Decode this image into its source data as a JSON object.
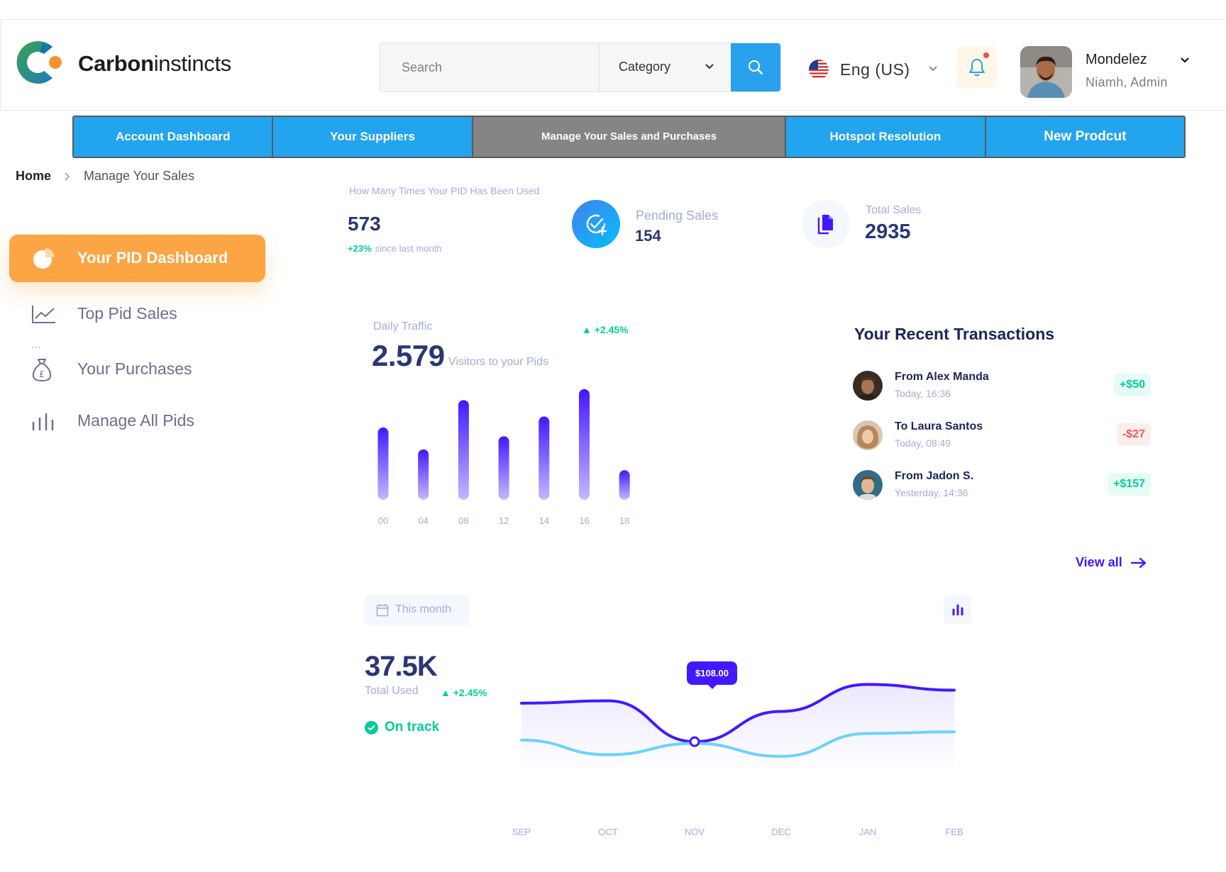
{
  "brand": {
    "name_bold": "Carbon",
    "name_light": "instincts"
  },
  "search": {
    "placeholder": "Search",
    "category": "Category"
  },
  "language": {
    "label": "Eng (US)"
  },
  "user": {
    "name": "Mondelez",
    "role": "Niamh, Admin"
  },
  "nav_tabs": [
    {
      "label": "Account Dashboard",
      "active": false
    },
    {
      "label": "Your Suppliers",
      "active": false
    },
    {
      "label": "Manage Your Sales and Purchases",
      "active": true
    },
    {
      "label": "Hotspot Resolution",
      "active": false
    },
    {
      "label": "New Prodcut",
      "active": false
    }
  ],
  "breadcrumb": {
    "home": "Home",
    "current": "Manage Your Sales"
  },
  "sidebar": {
    "active": {
      "label": "Your PID Dashboard",
      "icon": "pie-chart-icon"
    },
    "items": [
      {
        "label": "Top Pid Sales",
        "icon": "line-chart-icon"
      },
      {
        "label": "Your Purchases",
        "icon": "money-bag-icon"
      },
      {
        "label": "Manage All Pids",
        "icon": "bar-chart-icon"
      }
    ],
    "dots": "..."
  },
  "stats": {
    "pid_used": {
      "title": "How Many Times Your PID Has Been Used",
      "value": "573",
      "delta": "+23%",
      "delta_note": "since last month"
    },
    "pending": {
      "label": "Pending Sales",
      "value": "154"
    },
    "total": {
      "label": "Total Sales",
      "value": "2935"
    }
  },
  "daily_traffic": {
    "title": "Daily Traffic",
    "delta": "+2.45%",
    "value": "2.579",
    "subtitle": "Visitors to your Pids"
  },
  "transactions": {
    "title": "Your Recent Transactions",
    "items": [
      {
        "name": "From Alex Manda",
        "time": "Today, 16:36",
        "amount": "+$50",
        "positive": true
      },
      {
        "name": "To Laura Santos",
        "time": "Today, 08:49",
        "amount": "-$27",
        "positive": false
      },
      {
        "name": "From Jadon S.",
        "time": "Yesterday, 14:36",
        "amount": "+$157",
        "positive": true
      }
    ],
    "view_all": "View all"
  },
  "total_used": {
    "period": "This month",
    "value": "37.5K",
    "label": "Total Used",
    "delta": "+2.45%",
    "status": "On track",
    "tooltip": "$108.00"
  },
  "colors": {
    "accent_blue": "#23a4ee",
    "active_tab": "#858585",
    "orange": "#fba544",
    "purple": "#4318ff",
    "cyan": "#6ad2ff",
    "green": "#05cd99",
    "red": "#ee5d50",
    "navy": "#2b3674"
  },
  "chart_data": [
    {
      "type": "bar",
      "title": "Daily Traffic",
      "categories": [
        "00",
        "04",
        "08",
        "12",
        "14",
        "16",
        "18"
      ],
      "values": [
        66,
        46,
        91,
        58,
        76,
        101,
        27
      ],
      "ylim": [
        0,
        110
      ],
      "grid": false
    },
    {
      "type": "line",
      "categories": [
        "SEP",
        "OCT",
        "NOV",
        "DEC",
        "JAN",
        "FEB"
      ],
      "series": [
        {
          "values": [
            85,
            88,
            38,
            75,
            108,
            101
          ]
        },
        {
          "values": [
            40,
            22,
            36,
            20,
            48,
            50
          ]
        }
      ],
      "ylim": [
        0,
        130
      ],
      "annotation": "$108.00",
      "grid": false
    }
  ]
}
